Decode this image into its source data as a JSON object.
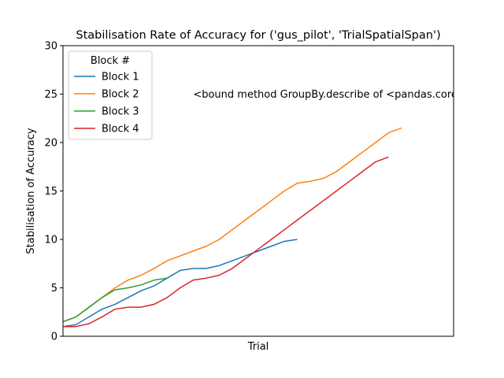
{
  "chart_data": {
    "type": "line",
    "title": "Stabilisation Rate of Accuracy for ('gus_pilot', 'TrialSpatialSpan')",
    "xlabel": "Trial",
    "ylabel": "Stabilisation of Accuracy",
    "xlim": [
      0,
      30
    ],
    "ylim": [
      0,
      30
    ],
    "yticks": [
      0,
      5,
      10,
      15,
      20,
      25,
      30
    ],
    "grid": false,
    "legend": {
      "title": "Block #",
      "placement": "top-left"
    },
    "annotation": {
      "text": "<bound method GroupBy.describe of <pandas.core.groupby.generic.DataFrameGroupBy object",
      "x": 10,
      "y": 25
    },
    "series": [
      {
        "name": "Block 1",
        "color": "#1f77b4",
        "x": [
          0,
          1,
          2,
          3,
          4,
          5,
          6,
          7,
          8,
          9,
          10,
          11,
          12,
          13,
          14,
          15,
          16,
          17,
          18
        ],
        "y": [
          1,
          1.2,
          2,
          2.8,
          3.3,
          4,
          4.7,
          5.2,
          6,
          6.8,
          7,
          7,
          7.3,
          7.8,
          8.3,
          8.8,
          9.3,
          9.8,
          10
        ]
      },
      {
        "name": "Block 2",
        "color": "#ff7f0e",
        "x": [
          0,
          1,
          2,
          3,
          4,
          5,
          6,
          7,
          8,
          9,
          10,
          11,
          12,
          13,
          14,
          15,
          16,
          17,
          18,
          19,
          20,
          21,
          22,
          23,
          24,
          25,
          26
        ],
        "y": [
          1.5,
          2,
          3,
          4,
          5,
          5.8,
          6.3,
          7,
          7.8,
          8.3,
          8.8,
          9.3,
          10,
          11,
          12,
          13,
          14,
          15,
          15.8,
          16,
          16.3,
          17,
          18,
          19,
          20,
          21,
          21.5
        ]
      },
      {
        "name": "Block 3",
        "color": "#2ca02c",
        "x": [
          0,
          1,
          2,
          3,
          4,
          5,
          6,
          7,
          8
        ],
        "y": [
          1.5,
          2,
          3,
          4,
          4.8,
          5,
          5.3,
          5.8,
          6
        ]
      },
      {
        "name": "Block 4",
        "color": "#d62728",
        "x": [
          0,
          1,
          2,
          3,
          4,
          5,
          6,
          7,
          8,
          9,
          10,
          11,
          12,
          13,
          14,
          15,
          16,
          17,
          18,
          19,
          20,
          21,
          22,
          23,
          24,
          25
        ],
        "y": [
          1,
          1,
          1.3,
          2,
          2.8,
          3,
          3,
          3.3,
          4,
          5,
          5.8,
          6,
          6.3,
          7,
          8,
          9,
          10,
          11,
          12,
          13,
          14,
          15,
          16,
          17,
          18,
          18.5
        ]
      }
    ]
  }
}
